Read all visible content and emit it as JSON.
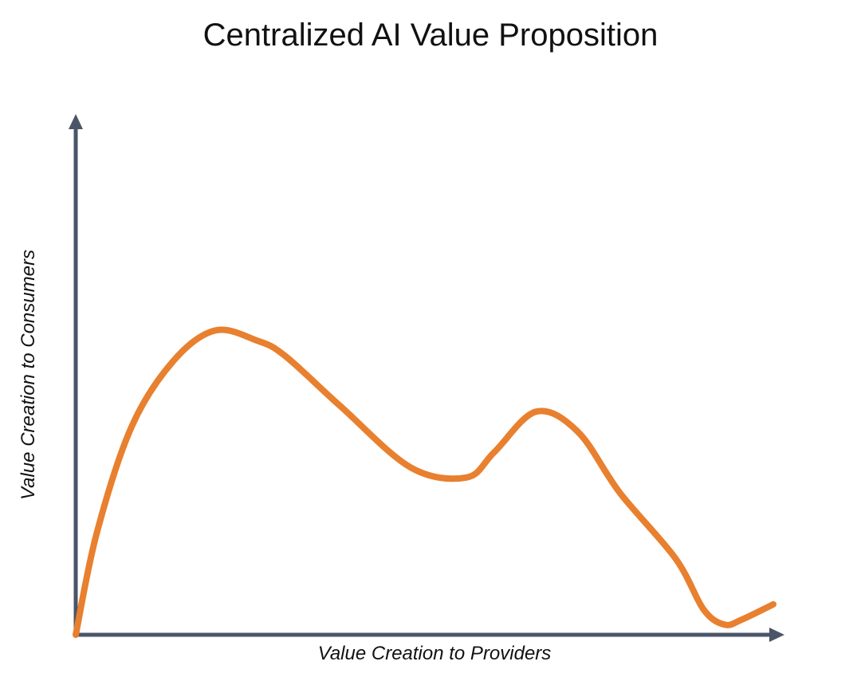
{
  "chart_data": {
    "type": "line",
    "title": "Centralized AI Value Proposition",
    "xlabel": "Value Creation to Providers",
    "ylabel": "Value Creation to Consumers",
    "xlim": [
      0,
      100
    ],
    "ylim": [
      0,
      100
    ],
    "grid": false,
    "x": [
      0,
      3,
      8,
      14,
      20,
      26,
      30,
      38,
      48,
      56,
      60,
      66,
      72,
      78,
      86,
      90,
      93,
      95.5,
      100
    ],
    "y": [
      0,
      20,
      41,
      54,
      60,
      58,
      55,
      45,
      33,
      31,
      36,
      44,
      40,
      28,
      15,
      5,
      2,
      3,
      6
    ],
    "line_color": "#E8802F",
    "axis_color": "#4A5568"
  }
}
